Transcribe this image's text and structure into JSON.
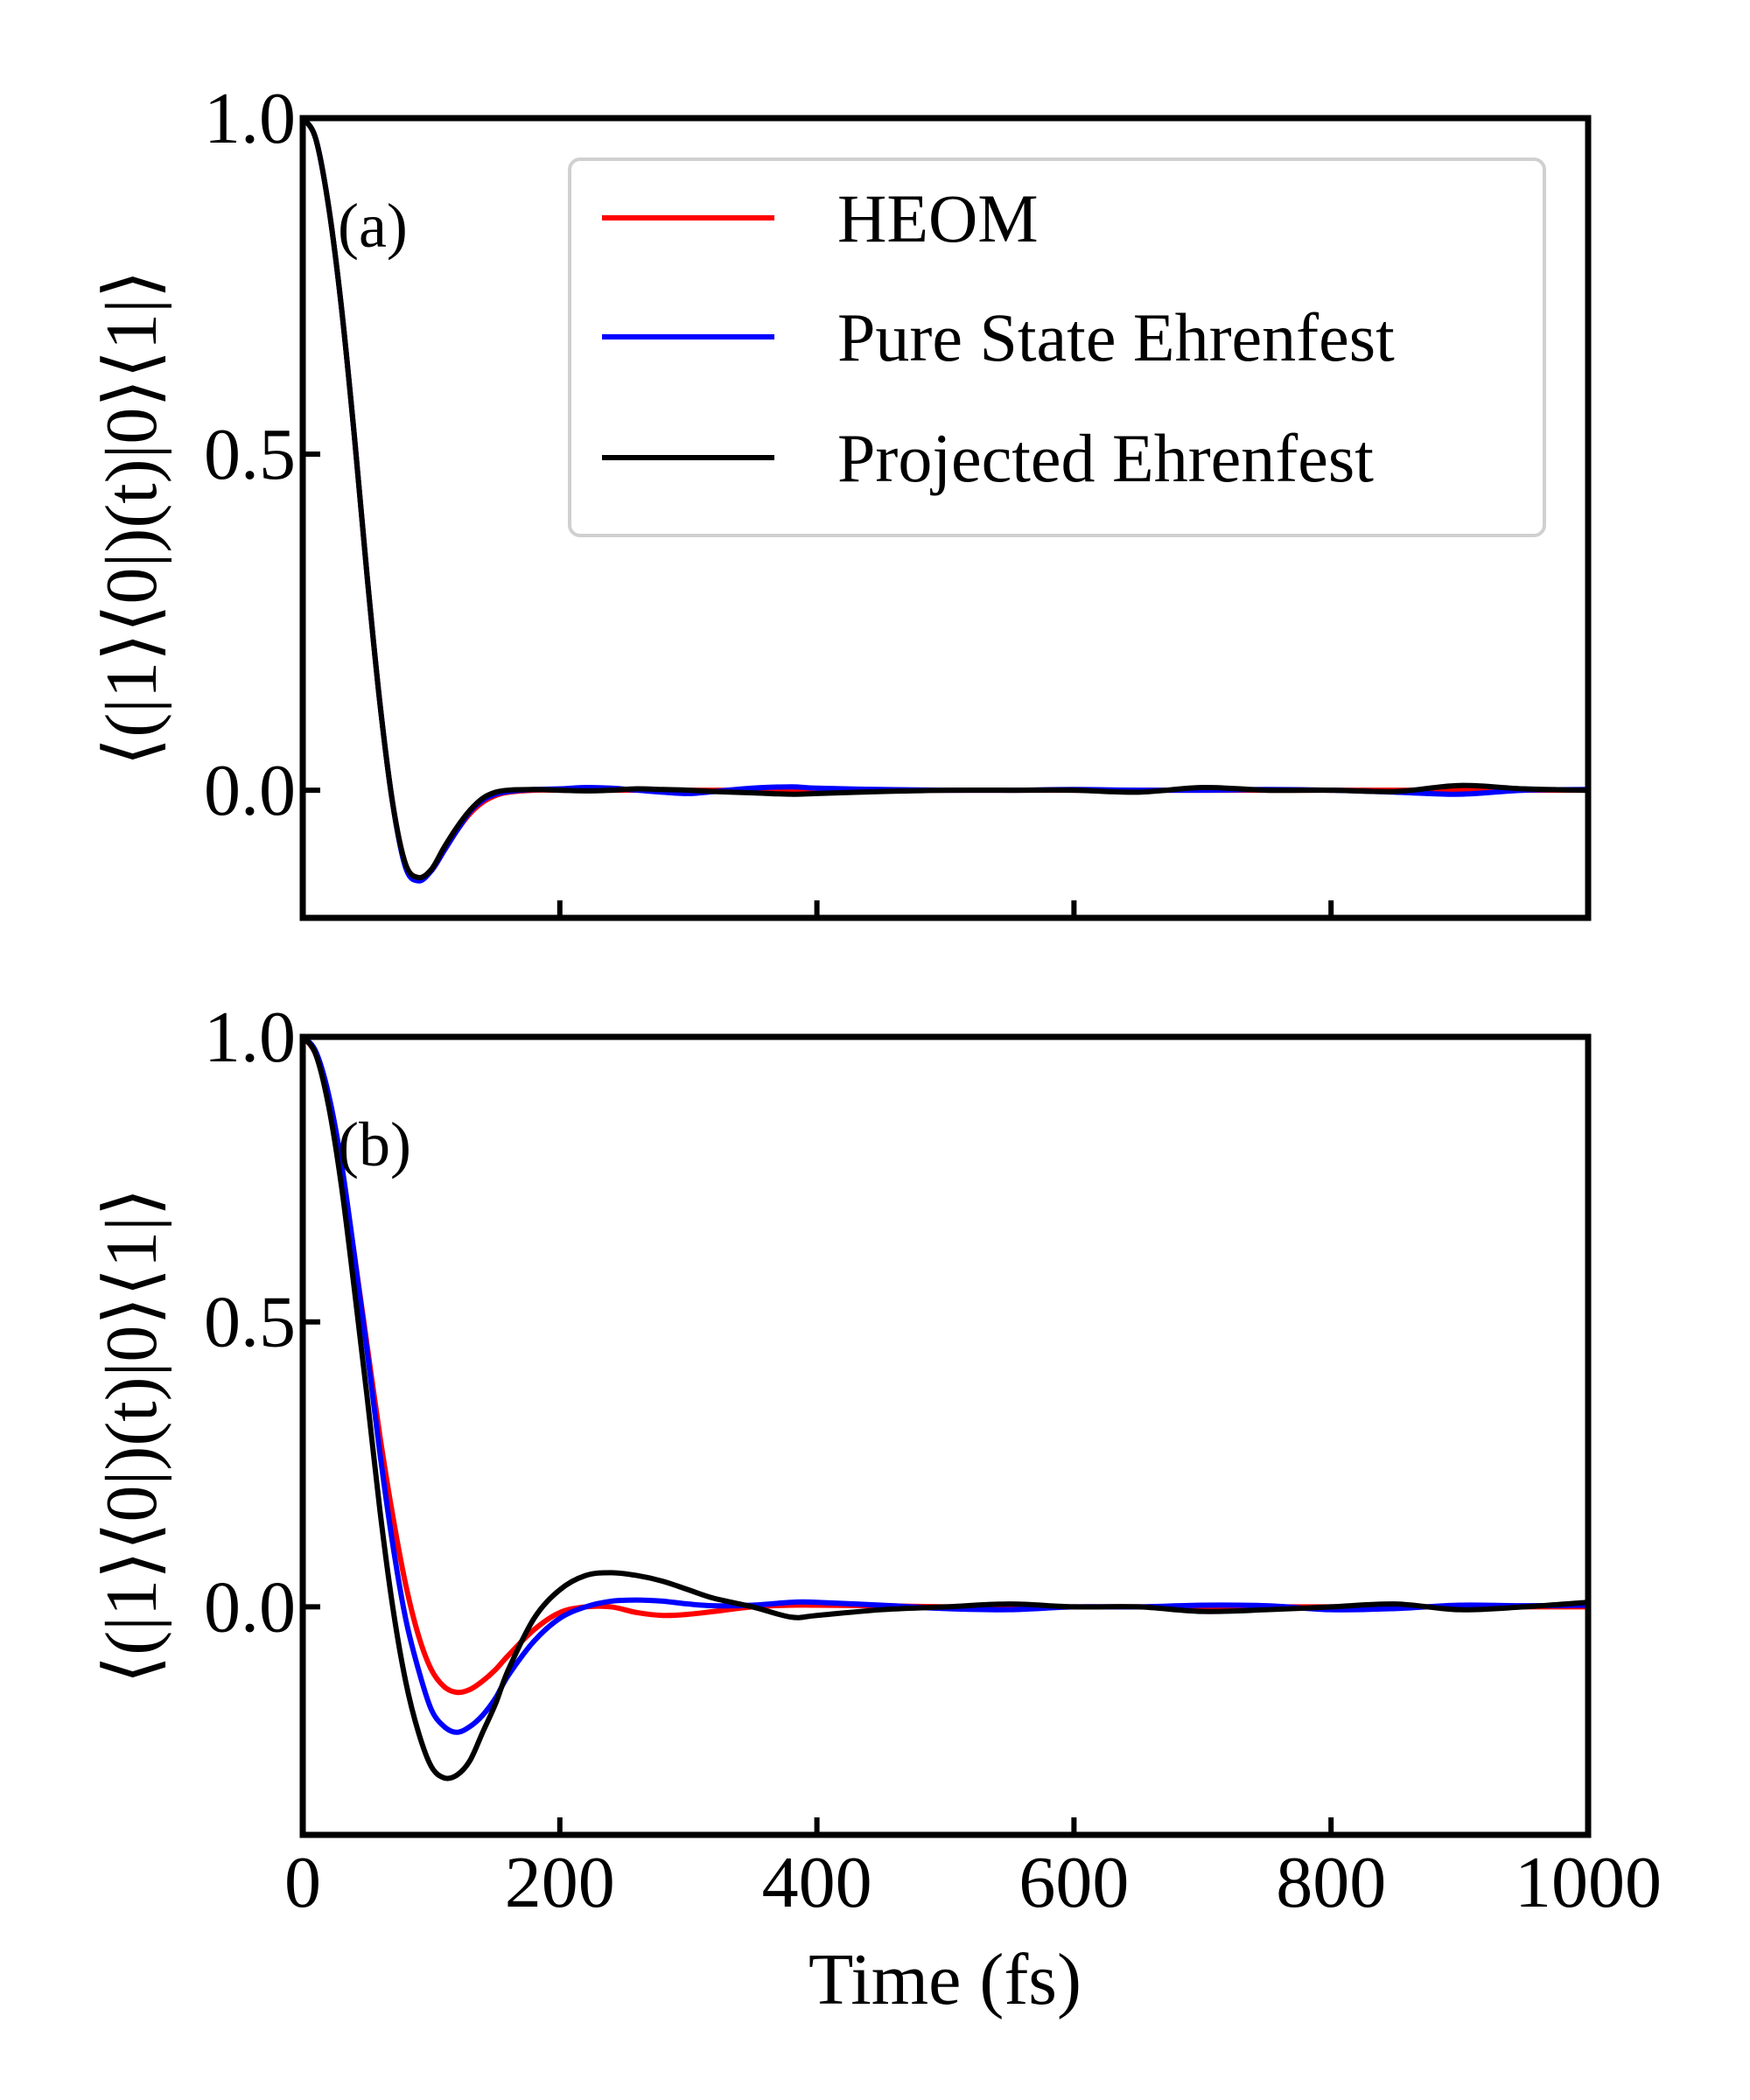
{
  "chart_data": [
    {
      "type": "line",
      "panel_label": "(a)",
      "ylabel": "⟨(|1⟩⟨0|)(t)|0⟩⟨1|⟩",
      "xlabel": "",
      "xlim": [
        0,
        1000
      ],
      "ylim": [
        -0.19,
        1.0
      ],
      "xticks": [
        0,
        200,
        400,
        600,
        800,
        1000
      ],
      "yticks": [
        0.0,
        0.5,
        1.0
      ],
      "ytick_labels": [
        "0.0",
        "0.5",
        "1.0"
      ],
      "show_xtick_labels": false,
      "grid": false,
      "legend": {
        "placement": "top-right",
        "entries": [
          "HEOM",
          "Pure State Ehrenfest",
          "Projected Ehrenfest"
        ]
      },
      "x": [
        0,
        10,
        20,
        30,
        40,
        50,
        60,
        70,
        80,
        90,
        100,
        110,
        120,
        130,
        140,
        150,
        160,
        180,
        200,
        220,
        240,
        260,
        280,
        300,
        320,
        350,
        380,
        400,
        450,
        500,
        550,
        600,
        650,
        700,
        750,
        800,
        850,
        900,
        950,
        1000
      ],
      "series": [
        {
          "name": "HEOM",
          "color": "#ff0000",
          "values": [
            1.0,
            0.97,
            0.87,
            0.72,
            0.53,
            0.32,
            0.13,
            -0.02,
            -0.11,
            -0.13,
            -0.12,
            -0.09,
            -0.06,
            -0.035,
            -0.018,
            -0.008,
            -0.003,
            0,
            0,
            0,
            0,
            0,
            0,
            0,
            0,
            0,
            0,
            0,
            0,
            0,
            0,
            0,
            0,
            0,
            0,
            0,
            0,
            0,
            0,
            0
          ]
        },
        {
          "name": "Pure State Ehrenfest",
          "color": "#0000ff",
          "values": [
            1.0,
            0.97,
            0.87,
            0.72,
            0.53,
            0.32,
            0.13,
            -0.02,
            -0.115,
            -0.135,
            -0.12,
            -0.09,
            -0.06,
            -0.032,
            -0.015,
            -0.006,
            -0.002,
            0.001,
            0.002,
            0.004,
            0.003,
            0,
            -0.003,
            -0.005,
            -0.002,
            0.003,
            0.005,
            0.003,
            0.001,
            0,
            0,
            0.001,
            0,
            0,
            0.001,
            0,
            -0.003,
            -0.006,
            0,
            0.001
          ]
        },
        {
          "name": "Projected Ehrenfest",
          "color": "#000000",
          "values": [
            1.0,
            0.97,
            0.87,
            0.72,
            0.53,
            0.32,
            0.13,
            -0.02,
            -0.11,
            -0.13,
            -0.118,
            -0.085,
            -0.055,
            -0.03,
            -0.012,
            -0.003,
            0,
            0.001,
            0,
            -0.001,
            0,
            0.002,
            0.001,
            0,
            -0.002,
            -0.004,
            -0.006,
            -0.005,
            -0.002,
            0,
            0,
            0,
            -0.003,
            0.004,
            0,
            0,
            -0.002,
            0.007,
            0.002,
            0
          ]
        }
      ]
    },
    {
      "type": "line",
      "panel_label": "(b)",
      "ylabel": "⟨(|1⟩⟨0|)(t)|0⟩⟨1|⟩",
      "xlabel": "Time (fs)",
      "xlim": [
        0,
        1000
      ],
      "ylim": [
        -0.4,
        1.0
      ],
      "xticks": [
        0,
        200,
        400,
        600,
        800,
        1000
      ],
      "xtick_labels": [
        "0",
        "200",
        "400",
        "600",
        "800",
        "1000"
      ],
      "yticks": [
        0.0,
        0.5,
        1.0
      ],
      "ytick_labels": [
        "0.0",
        "0.5",
        "1.0"
      ],
      "show_xtick_labels": true,
      "grid": false,
      "x": [
        0,
        10,
        20,
        30,
        40,
        50,
        60,
        70,
        80,
        90,
        100,
        110,
        120,
        130,
        140,
        150,
        160,
        180,
        200,
        220,
        240,
        260,
        280,
        300,
        320,
        350,
        380,
        400,
        450,
        500,
        550,
        600,
        650,
        700,
        750,
        800,
        850,
        900,
        950,
        1000
      ],
      "series": [
        {
          "name": "HEOM",
          "color": "#ff0000",
          "values": [
            1.0,
            0.97,
            0.89,
            0.77,
            0.62,
            0.46,
            0.3,
            0.16,
            0.04,
            -0.05,
            -0.11,
            -0.14,
            -0.15,
            -0.145,
            -0.13,
            -0.11,
            -0.085,
            -0.04,
            -0.01,
            0,
            0,
            -0.01,
            -0.015,
            -0.013,
            -0.008,
            0,
            0.003,
            0.003,
            0.002,
            0,
            0,
            0,
            0,
            0,
            0,
            0,
            0,
            0,
            0,
            0
          ]
        },
        {
          "name": "Pure State Ehrenfest",
          "color": "#0000ff",
          "values": [
            1.0,
            0.975,
            0.9,
            0.78,
            0.62,
            0.45,
            0.27,
            0.11,
            -0.02,
            -0.11,
            -0.18,
            -0.21,
            -0.22,
            -0.21,
            -0.19,
            -0.16,
            -0.12,
            -0.06,
            -0.02,
            0,
            0.01,
            0.012,
            0.01,
            0.005,
            0.002,
            0.003,
            0.008,
            0.008,
            0.003,
            -0.003,
            -0.005,
            0,
            0,
            0.003,
            0.002,
            -0.005,
            -0.003,
            0.003,
            0.002,
            0.003
          ]
        },
        {
          "name": "Projected Ehrenfest",
          "color": "#000000",
          "values": [
            1.0,
            0.97,
            0.88,
            0.74,
            0.56,
            0.37,
            0.17,
            0,
            -0.13,
            -0.22,
            -0.28,
            -0.3,
            -0.295,
            -0.27,
            -0.22,
            -0.17,
            -0.11,
            -0.02,
            0.03,
            0.055,
            0.06,
            0.055,
            0.045,
            0.03,
            0.015,
            0,
            -0.018,
            -0.015,
            -0.005,
            0,
            0.005,
            0,
            0,
            -0.008,
            -0.005,
            0,
            0.005,
            -0.005,
            0,
            0.008
          ]
        }
      ]
    }
  ]
}
